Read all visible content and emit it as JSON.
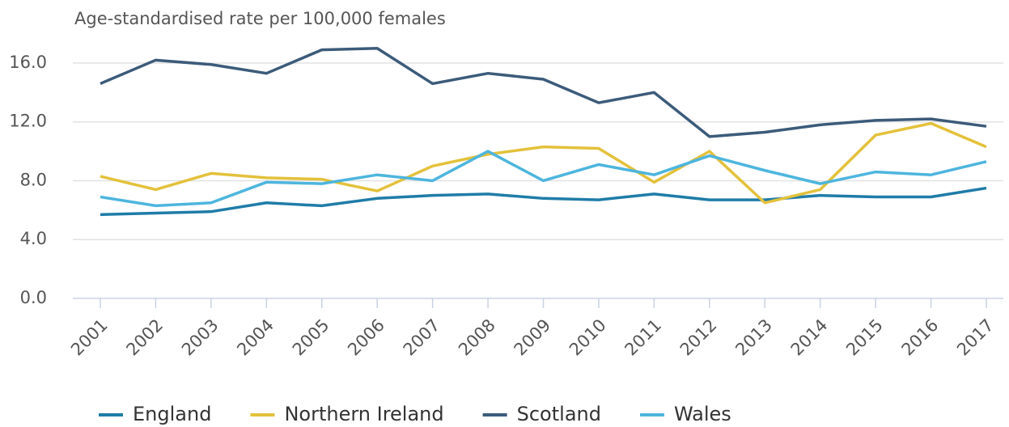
{
  "chart_data": {
    "type": "line",
    "ylabel": "Age-standardised rate per 100,000 females",
    "categories": [
      "2001",
      "2002",
      "2003",
      "2004",
      "2005",
      "2006",
      "2007",
      "2008",
      "2009",
      "2010",
      "2011",
      "2012",
      "2013",
      "2014",
      "2015",
      "2016",
      "2017"
    ],
    "series": [
      {
        "name": "England",
        "color": "#1f7ca8",
        "values": [
          5.7,
          5.8,
          5.9,
          6.5,
          6.3,
          6.8,
          7.0,
          7.1,
          6.8,
          6.7,
          7.1,
          6.7,
          6.7,
          7.0,
          6.9,
          6.9,
          7.5
        ]
      },
      {
        "name": "Northern Ireland",
        "color": "#e3c13b",
        "values": [
          8.3,
          7.4,
          8.5,
          8.2,
          8.1,
          7.3,
          9.0,
          9.8,
          10.3,
          10.2,
          7.9,
          10.0,
          6.5,
          7.4,
          11.1,
          11.9,
          10.3
        ]
      },
      {
        "name": "Scotland",
        "color": "#3c5b7a",
        "values": [
          14.6,
          16.2,
          15.9,
          15.3,
          16.9,
          17.0,
          14.6,
          15.3,
          14.9,
          13.3,
          14.0,
          11.0,
          11.3,
          11.8,
          12.1,
          12.2,
          11.7
        ]
      },
      {
        "name": "Wales",
        "color": "#4db5de",
        "values": [
          6.9,
          6.3,
          6.5,
          7.9,
          7.8,
          8.4,
          8.0,
          10.0,
          8.0,
          9.1,
          8.4,
          9.7,
          8.7,
          7.8,
          8.6,
          8.4,
          9.3
        ]
      }
    ],
    "ylim": [
      0,
      18
    ],
    "yticks": [
      {
        "value": 0,
        "label": "0.0"
      },
      {
        "value": 4,
        "label": "4.0"
      },
      {
        "value": 8,
        "label": "8.0"
      },
      {
        "value": 12,
        "label": "12.0"
      },
      {
        "value": 16,
        "label": "16.0"
      }
    ],
    "grid": true
  }
}
